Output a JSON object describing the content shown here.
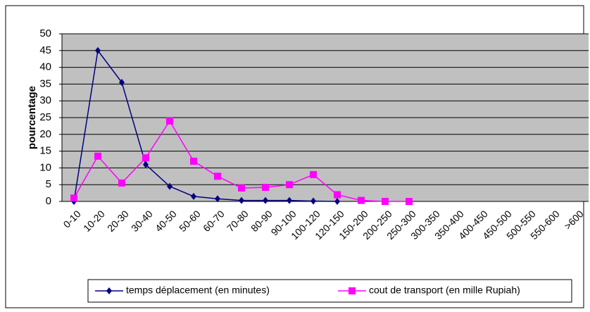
{
  "chart_data": {
    "type": "line",
    "y_label": "pourcentage",
    "categories": [
      "0-10",
      "10-20",
      "20-30",
      "30-40",
      "40-50",
      "50-60",
      "60-70",
      "70-80",
      "80-90",
      "90-100",
      "100-120",
      "120-150",
      "150-200",
      "200-250",
      "250-300",
      "300-350",
      "350-400",
      "400-450",
      "450-500",
      "500-550",
      "550-600",
      ">600"
    ],
    "series": [
      {
        "name": "temps déplacement (en minutes)",
        "color": "#000080",
        "marker": "diamond",
        "values": [
          0,
          45,
          35.5,
          11,
          4.5,
          1.5,
          0.8,
          0.3,
          0.3,
          0.3,
          0.1,
          0,
          null,
          null,
          null,
          null,
          null,
          null,
          null,
          null,
          null,
          null
        ]
      },
      {
        "name": "cout de transport (en mille Rupiah)",
        "color": "#ff00ff",
        "marker": "square",
        "values": [
          1,
          13.5,
          5.5,
          13,
          24,
          12,
          7.5,
          4,
          4.2,
          5,
          8,
          2,
          0.3,
          0,
          0,
          null,
          null,
          null,
          null,
          null,
          null,
          null
        ]
      }
    ],
    "ylim": [
      0,
      50
    ],
    "yticks": [
      0,
      5,
      10,
      15,
      20,
      25,
      30,
      35,
      40,
      45,
      50
    ],
    "grid": true,
    "legend": "bottom"
  }
}
